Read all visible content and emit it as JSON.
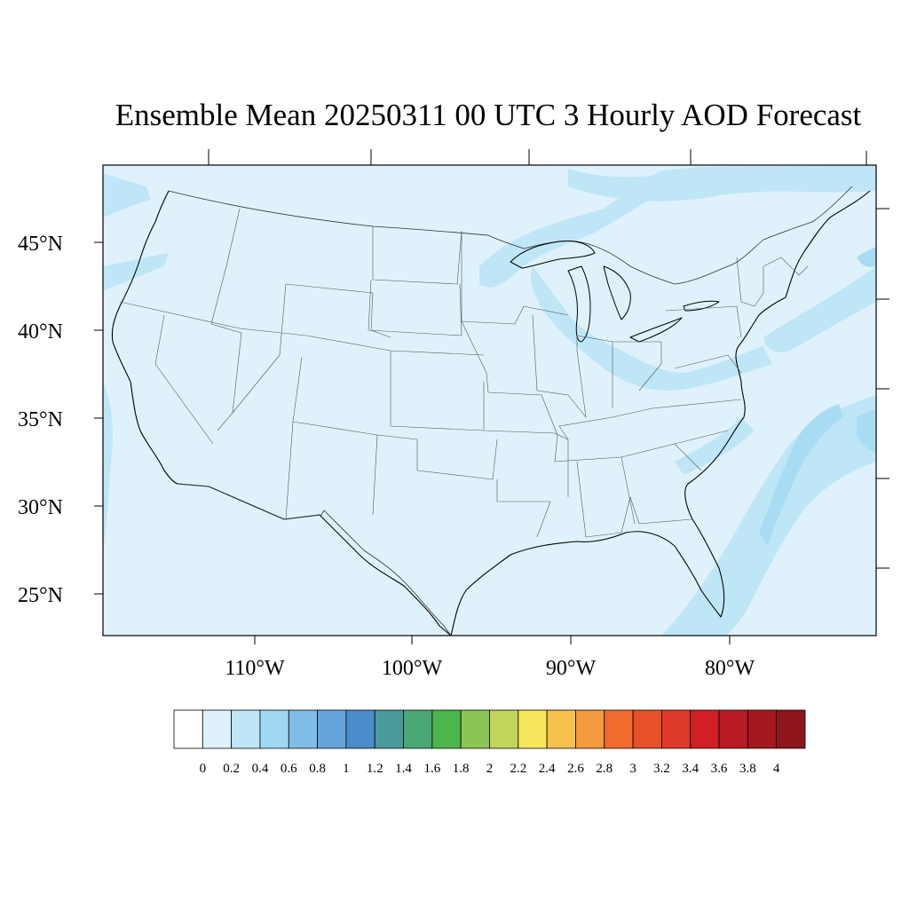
{
  "title": "Ensemble Mean 20250311 00 UTC 3 Hourly AOD Forecast",
  "map": {
    "region": "Contiguous United States",
    "projection": "Lambert conformal",
    "field": "AOD",
    "background_value_range": [
      0.2,
      0.4
    ],
    "colors": {
      "background": "#dff2fb",
      "level_0_4_to_0_6": "#bfe6f7",
      "level_0_6_to_0_8": "#a8dcf3",
      "borders": "#333333",
      "coast": "#000000"
    }
  },
  "lat_labels": [
    "45°N",
    "40°N",
    "35°N",
    "30°N",
    "25°N"
  ],
  "lon_labels": [
    "110°W",
    "100°W",
    "90°W",
    "80°W"
  ],
  "colorbar": {
    "labels": [
      "0",
      "0.2",
      "0.4",
      "0.6",
      "0.8",
      "1",
      "1.2",
      "1.4",
      "1.6",
      "1.8",
      "2",
      "2.2",
      "2.4",
      "2.6",
      "2.8",
      "3",
      "3.2",
      "3.4",
      "3.6",
      "3.8",
      "4"
    ],
    "colors": [
      "#ffffff",
      "#dff2fb",
      "#bfe6f7",
      "#a0d8f3",
      "#80bde6",
      "#64a6db",
      "#4b8cca",
      "#4a9b9c",
      "#4aa876",
      "#4bb64b",
      "#8cc652",
      "#c3d559",
      "#f7e55c",
      "#f7c24b",
      "#f59b3d",
      "#f06b2d",
      "#e6512a",
      "#df3a27",
      "#d21f26",
      "#b81b23",
      "#a5181e",
      "#8d151b"
    ]
  }
}
